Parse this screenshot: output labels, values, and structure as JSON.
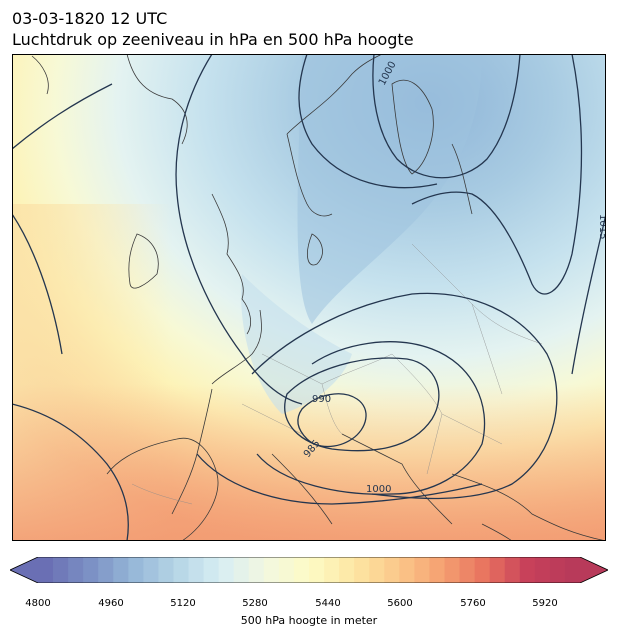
{
  "header": {
    "datetime": "03-03-1820 12 UTC",
    "subtitle": "Luchtdruk op zeeniveau in hPa en 500 hPa hoogte"
  },
  "map": {
    "isobar_labels": [
      "1000",
      "990",
      "985",
      "1000",
      "1015"
    ],
    "isobar_color": "#24364f",
    "coastline_color": "#3a3a3a"
  },
  "colorbar": {
    "label": "500 hPa hoogte in meter",
    "ticks": [
      "4800",
      "4960",
      "5120",
      "5280",
      "5440",
      "5600",
      "5760",
      "5920"
    ],
    "range": [
      4800,
      5980
    ],
    "colors": [
      "#6a6fb4",
      "#7b90c4",
      "#96b7d8",
      "#b6d6e6",
      "#d8eef3",
      "#f2f7e0",
      "#fdfbc6",
      "#fde7a4",
      "#fbc98b",
      "#f5a272",
      "#e8735f",
      "#c7405a",
      "#b83a5a"
    ]
  }
}
